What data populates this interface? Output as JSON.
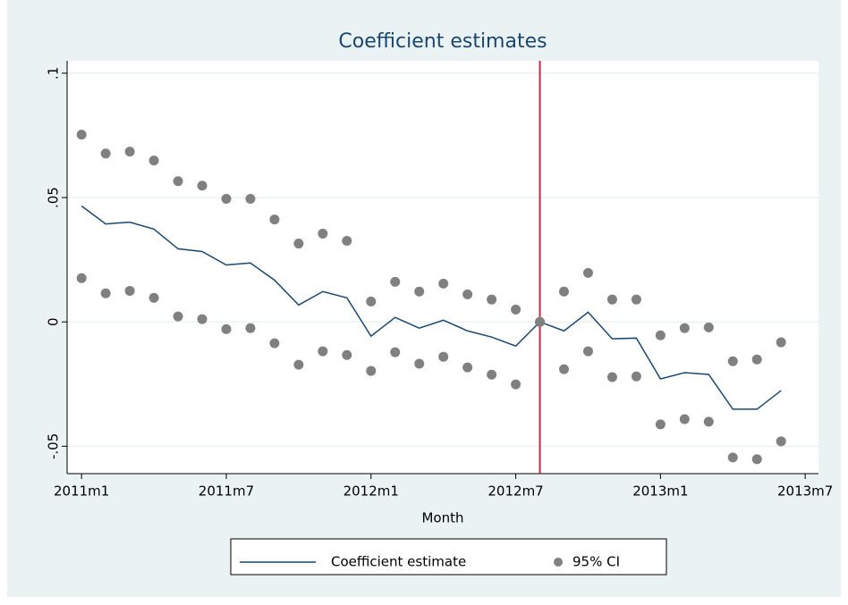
{
  "chart_data": {
    "type": "line",
    "title": "Coefficient estimates",
    "x_label": "Month",
    "x": [
      612,
      613,
      614,
      615,
      616,
      617,
      618,
      619,
      620,
      621,
      622,
      623,
      624,
      625,
      626,
      627,
      628,
      629,
      630,
      631,
      632,
      633,
      634,
      635,
      636,
      637,
      638,
      639,
      640,
      641
    ],
    "xlim": [
      611.4,
      642.55
    ],
    "xticks": [
      {
        "value": 612,
        "label": "2011m1"
      },
      {
        "value": 618,
        "label": "2011m7"
      },
      {
        "value": 624,
        "label": "2012m1"
      },
      {
        "value": 630,
        "label": "2012m7"
      },
      {
        "value": 636,
        "label": "2013m1"
      },
      {
        "value": 642,
        "label": "2013m7"
      }
    ],
    "ylim": [
      -0.061,
      0.105
    ],
    "yticks": [
      {
        "value": -0.05,
        "label": "-.05"
      },
      0,
      {
        "value": 0.05,
        "label": ".05"
      },
      {
        "value": 0.1,
        "label": ".1"
      }
    ],
    "grid": true,
    "xline": {
      "value": 631,
      "color": "#c8284a"
    },
    "series": [
      {
        "name": "Coefficient estimate",
        "type": "line",
        "color": "#1a476f",
        "values": [
          0.0466,
          0.0394,
          0.0401,
          0.0373,
          0.0294,
          0.0283,
          0.0229,
          0.0237,
          0.0168,
          0.0068,
          0.0122,
          0.0097,
          -0.0057,
          0.0018,
          -0.0025,
          0.0007,
          -0.0036,
          -0.0061,
          -0.0097,
          0,
          -0.0036,
          0.0039,
          -0.0068,
          -0.0065,
          -0.0229,
          -0.0204,
          -0.0211,
          -0.0351,
          -0.0351,
          -0.0276
        ]
      },
      {
        "name": "95% CI",
        "type": "scatter",
        "color": "#808080",
        "upper": [
          0.0753,
          0.0677,
          0.0685,
          0.0649,
          0.0566,
          0.0548,
          0.0495,
          0.0495,
          0.0412,
          0.0315,
          0.0355,
          0.0326,
          0.0082,
          0.0161,
          0.0122,
          0.0154,
          0.0111,
          0.009,
          0.005,
          0,
          0.0122,
          0.0197,
          0.009,
          0.009,
          -0.0054,
          -0.0025,
          -0.0022,
          -0.0158,
          -0.0151,
          -0.0082
        ],
        "lower": [
          0.0176,
          0.0115,
          0.0125,
          0.0097,
          0.0022,
          0.0011,
          -0.0029,
          -0.0025,
          -0.0086,
          -0.0172,
          -0.0118,
          -0.0133,
          -0.0197,
          -0.0122,
          -0.0168,
          -0.014,
          -0.0183,
          -0.0212,
          -0.0251,
          0,
          -0.019,
          -0.0118,
          -0.0222,
          -0.0219,
          -0.0412,
          -0.0391,
          -0.0401,
          -0.0545,
          -0.0552,
          -0.048
        ]
      }
    ]
  }
}
